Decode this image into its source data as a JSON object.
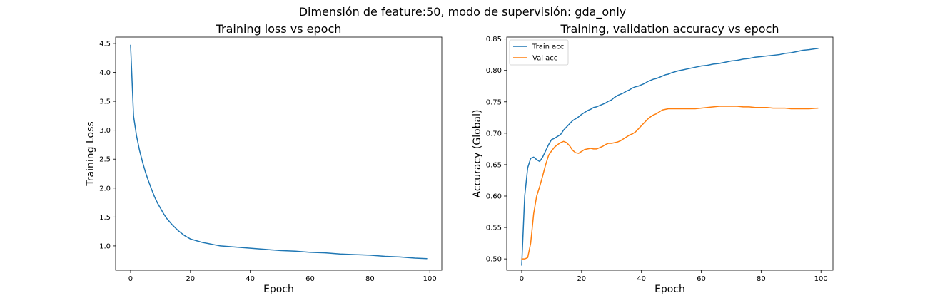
{
  "suptitle": "Dimensión de feature:50, modo de supervisión: gda_only",
  "chart_data": [
    {
      "type": "line",
      "title": "Training loss vs epoch",
      "xlabel": "Epoch",
      "ylabel": "Training Loss",
      "xlim": [
        -5,
        104
      ],
      "ylim": [
        0.58,
        4.61
      ],
      "xticks": [
        0,
        20,
        40,
        60,
        80,
        100
      ],
      "yticks": [
        1.0,
        1.5,
        2.0,
        2.5,
        3.0,
        3.5,
        4.0,
        4.5
      ],
      "xtick_labels": [
        "0",
        "20",
        "40",
        "60",
        "80",
        "100"
      ],
      "ytick_labels": [
        "1.0",
        "1.5",
        "2.0",
        "2.5",
        "3.0",
        "3.5",
        "4.0",
        "4.5"
      ],
      "grid": false,
      "series": [
        {
          "color": "#1f77b4",
          "x": [
            0,
            1,
            2,
            3,
            4,
            5,
            6,
            7,
            8,
            9,
            10,
            11,
            12,
            13,
            14,
            15,
            16,
            17,
            18,
            19,
            20,
            22,
            24,
            26,
            28,
            30,
            35,
            40,
            45,
            50,
            55,
            60,
            65,
            70,
            75,
            80,
            85,
            90,
            95,
            99
          ],
          "y": [
            4.47,
            3.24,
            2.9,
            2.65,
            2.45,
            2.27,
            2.12,
            1.98,
            1.85,
            1.74,
            1.65,
            1.56,
            1.48,
            1.42,
            1.36,
            1.31,
            1.26,
            1.22,
            1.18,
            1.15,
            1.12,
            1.09,
            1.06,
            1.04,
            1.02,
            1.0,
            0.98,
            0.96,
            0.94,
            0.92,
            0.91,
            0.89,
            0.88,
            0.86,
            0.85,
            0.84,
            0.82,
            0.81,
            0.79,
            0.78
          ]
        }
      ]
    },
    {
      "type": "line",
      "title": "Training, validation accuracy vs epoch",
      "xlabel": "Epoch",
      "ylabel": "Accuracy (Global)",
      "xlim": [
        -5,
        104
      ],
      "ylim": [
        0.482,
        0.853
      ],
      "xticks": [
        0,
        20,
        40,
        60,
        80,
        100
      ],
      "yticks": [
        0.5,
        0.55,
        0.6,
        0.65,
        0.7,
        0.75,
        0.8,
        0.85
      ],
      "xtick_labels": [
        "0",
        "20",
        "40",
        "60",
        "80",
        "100"
      ],
      "ytick_labels": [
        "0.50",
        "0.55",
        "0.60",
        "0.65",
        "0.70",
        "0.75",
        "0.80",
        "0.85"
      ],
      "grid": false,
      "legend": {
        "placement": "upper-left",
        "entries": [
          "Train acc",
          "Val acc"
        ]
      },
      "series": [
        {
          "name": "Train acc",
          "color": "#1f77b4",
          "x": [
            0,
            1,
            2,
            3,
            4,
            5,
            6,
            7,
            8,
            9,
            10,
            11,
            12,
            13,
            14,
            15,
            16,
            17,
            18,
            19,
            20,
            21,
            22,
            23,
            24,
            25,
            26,
            27,
            28,
            29,
            30,
            31,
            32,
            33,
            34,
            35,
            36,
            37,
            38,
            39,
            40,
            41,
            42,
            43,
            44,
            45,
            46,
            47,
            48,
            49,
            50,
            52,
            54,
            56,
            58,
            60,
            62,
            64,
            66,
            68,
            70,
            72,
            74,
            76,
            78,
            80,
            82,
            84,
            86,
            88,
            90,
            92,
            94,
            96,
            99
          ],
          "y": [
            0.49,
            0.6,
            0.645,
            0.66,
            0.662,
            0.658,
            0.655,
            0.662,
            0.672,
            0.682,
            0.69,
            0.692,
            0.695,
            0.698,
            0.705,
            0.71,
            0.715,
            0.72,
            0.723,
            0.726,
            0.73,
            0.733,
            0.736,
            0.738,
            0.741,
            0.742,
            0.744,
            0.746,
            0.748,
            0.751,
            0.753,
            0.757,
            0.76,
            0.762,
            0.764,
            0.767,
            0.769,
            0.772,
            0.774,
            0.775,
            0.777,
            0.779,
            0.782,
            0.784,
            0.786,
            0.787,
            0.789,
            0.791,
            0.793,
            0.794,
            0.796,
            0.799,
            0.801,
            0.803,
            0.805,
            0.807,
            0.808,
            0.81,
            0.811,
            0.813,
            0.815,
            0.816,
            0.818,
            0.819,
            0.821,
            0.822,
            0.823,
            0.824,
            0.825,
            0.827,
            0.828,
            0.83,
            0.832,
            0.833,
            0.835
          ]
        },
        {
          "name": "Val acc",
          "color": "#ff7f0e",
          "x": [
            0,
            1,
            2,
            3,
            4,
            5,
            6,
            7,
            8,
            9,
            10,
            11,
            12,
            13,
            14,
            15,
            16,
            17,
            18,
            19,
            20,
            21,
            22,
            23,
            24,
            25,
            26,
            27,
            28,
            29,
            30,
            31,
            32,
            33,
            34,
            35,
            36,
            37,
            38,
            39,
            40,
            41,
            42,
            43,
            44,
            45,
            46,
            47,
            48,
            49,
            50,
            52,
            54,
            56,
            58,
            60,
            62,
            64,
            66,
            68,
            70,
            72,
            74,
            76,
            78,
            80,
            82,
            84,
            86,
            88,
            90,
            92,
            94,
            96,
            99
          ],
          "y": [
            0.5,
            0.5,
            0.502,
            0.525,
            0.572,
            0.6,
            0.615,
            0.632,
            0.65,
            0.665,
            0.672,
            0.678,
            0.682,
            0.685,
            0.687,
            0.685,
            0.68,
            0.673,
            0.669,
            0.668,
            0.671,
            0.674,
            0.675,
            0.676,
            0.675,
            0.675,
            0.677,
            0.679,
            0.682,
            0.684,
            0.684,
            0.685,
            0.686,
            0.688,
            0.691,
            0.694,
            0.697,
            0.699,
            0.702,
            0.707,
            0.712,
            0.717,
            0.722,
            0.726,
            0.729,
            0.731,
            0.734,
            0.737,
            0.738,
            0.739,
            0.739,
            0.739,
            0.739,
            0.739,
            0.739,
            0.74,
            0.741,
            0.742,
            0.743,
            0.743,
            0.743,
            0.743,
            0.742,
            0.742,
            0.741,
            0.741,
            0.741,
            0.74,
            0.74,
            0.74,
            0.739,
            0.739,
            0.739,
            0.739,
            0.74
          ]
        }
      ]
    }
  ]
}
